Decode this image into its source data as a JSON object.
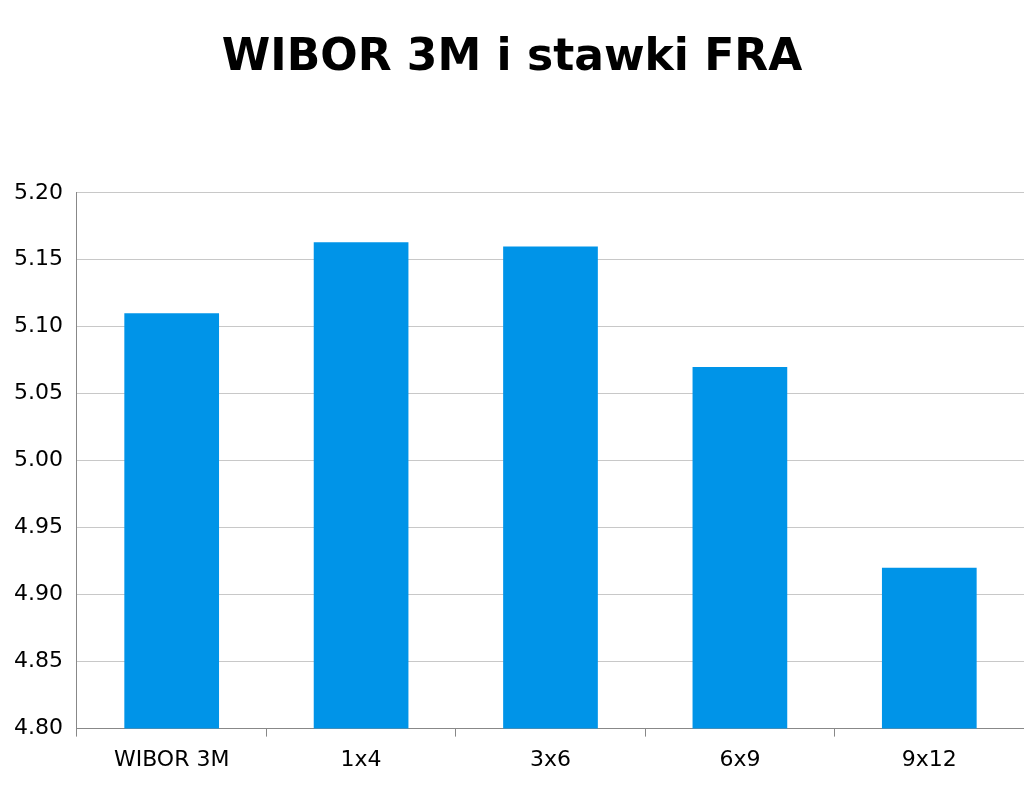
{
  "chart_data": {
    "type": "bar",
    "title": "WIBOR 3M i stawki FRA",
    "categories": [
      "WIBOR 3M",
      "1x4",
      "3x6",
      "6x9",
      "9x12"
    ],
    "values": [
      5.11,
      5.163,
      5.16,
      5.07,
      4.92
    ],
    "color": "#0094e8",
    "ylim": [
      4.8,
      5.2
    ],
    "yticks": [
      {
        "value": 4.8,
        "label": "4.80"
      },
      {
        "value": 4.85,
        "label": "4.85"
      },
      {
        "value": 4.9,
        "label": "4.90"
      },
      {
        "value": 4.95,
        "label": "4.95"
      },
      {
        "value": 5.0,
        "label": "5.00"
      },
      {
        "value": 5.05,
        "label": "5.05"
      },
      {
        "value": 5.1,
        "label": "5.10"
      },
      {
        "value": 5.15,
        "label": "5.15"
      },
      {
        "value": 5.2,
        "label": "5.20"
      }
    ],
    "grid": "y"
  }
}
